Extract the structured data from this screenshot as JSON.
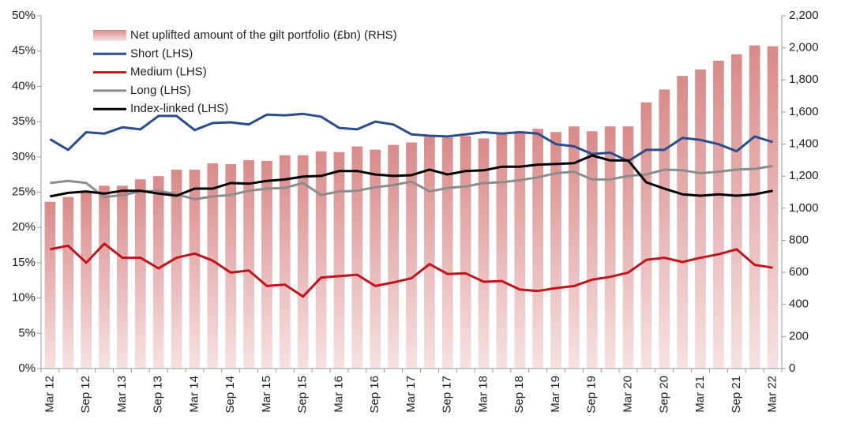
{
  "chart_data": {
    "type": "bar-line",
    "categories": [
      "Mar 12",
      null,
      "Sep 12",
      null,
      "Mar 13",
      null,
      "Sep 13",
      null,
      "Mar 14",
      null,
      "Sep 14",
      null,
      "Mar 15",
      null,
      "Sep 15",
      null,
      "Mar 16",
      null,
      "Sep 16",
      null,
      "Mar 17",
      null,
      "Sep 17",
      null,
      "Mar 18",
      null,
      "Sep 18",
      null,
      "Mar 19",
      null,
      "Sep 19",
      null,
      "Mar 20",
      null,
      "Sep 20",
      null,
      "Mar 21",
      null,
      "Sep 21",
      null,
      "Mar 22"
    ],
    "ylim": [
      0,
      50
    ],
    "yticks": [
      {
        "value": 0,
        "label": "0%"
      },
      {
        "value": 5,
        "label": "5%"
      },
      {
        "value": 10,
        "label": "10%"
      },
      {
        "value": 15,
        "label": "15%"
      },
      {
        "value": 20,
        "label": "20%"
      },
      {
        "value": 25,
        "label": "25%"
      },
      {
        "value": 30,
        "label": "30%"
      },
      {
        "value": 35,
        "label": "35%"
      },
      {
        "value": 40,
        "label": "40%"
      },
      {
        "value": 45,
        "label": "45%"
      },
      {
        "value": 50,
        "label": "50%"
      }
    ],
    "y2lim": [
      0,
      2200
    ],
    "y2ticks": [
      0,
      200,
      400,
      600,
      800,
      {
        "value": 1000,
        "label": "1,000"
      },
      {
        "value": 1200,
        "label": "1,200"
      },
      {
        "value": 1400,
        "label": "1,400"
      },
      {
        "value": 1600,
        "label": "1,600"
      },
      {
        "value": 1800,
        "label": "1,800"
      },
      {
        "value": 2000,
        "label": "2,000"
      },
      {
        "value": 2200,
        "label": "2,200"
      }
    ],
    "series": [
      {
        "name": "Net uplifted amount of the gilt portfolio (£bn) (RHS)",
        "kind": "bar",
        "axis": "y2",
        "color": "#d98a8a",
        "values": [
          1040,
          1070,
          1100,
          1140,
          1140,
          1180,
          1200,
          1240,
          1240,
          1280,
          1275,
          1300,
          1295,
          1330,
          1330,
          1355,
          1350,
          1385,
          1365,
          1395,
          1410,
          1445,
          1440,
          1450,
          1435,
          1465,
          1480,
          1495,
          1475,
          1510,
          1480,
          1510,
          1510,
          1660,
          1740,
          1825,
          1865,
          1920,
          1960,
          2015,
          2010
        ]
      },
      {
        "name": "Short (LHS)",
        "kind": "line",
        "color": "#2b4d8c",
        "values": [
          32.5,
          31,
          33.5,
          33.3,
          34.2,
          33.9,
          35.8,
          35.8,
          33.8,
          34.8,
          34.9,
          34.6,
          36,
          35.9,
          36.1,
          35.7,
          34.1,
          33.9,
          35,
          34.6,
          33.2,
          33,
          32.9,
          33.2,
          33.5,
          33.3,
          33.5,
          33.3,
          31.8,
          31.5,
          30.4,
          30.6,
          29.4,
          31,
          31,
          32.7,
          32.4,
          31.8,
          30.8,
          32.9,
          32.1
        ]
      },
      {
        "name": "Medium (LHS)",
        "kind": "line",
        "color": "#c0141f",
        "values": [
          16.9,
          17.4,
          15,
          17.7,
          15.7,
          15.7,
          14.2,
          15.7,
          16.3,
          15.3,
          13.6,
          13.9,
          11.7,
          11.9,
          10.2,
          12.9,
          13.1,
          13.3,
          11.7,
          12.2,
          12.8,
          14.8,
          13.4,
          13.5,
          12.3,
          12.4,
          11.2,
          11,
          11.4,
          11.7,
          12.6,
          13,
          13.6,
          15.4,
          15.7,
          15.1,
          15.7,
          16.2,
          16.9,
          14.7,
          14.3
        ]
      },
      {
        "name": "Long (LHS)",
        "kind": "line",
        "color": "#8c8c8c",
        "values": [
          26.3,
          26.6,
          26.3,
          24.3,
          24.6,
          25.1,
          25.2,
          24.7,
          24,
          24.4,
          24.6,
          25.2,
          25.5,
          25.6,
          26.3,
          24.6,
          25.1,
          25.2,
          25.7,
          26,
          26.5,
          25.1,
          25.6,
          25.8,
          26.3,
          26.4,
          26.7,
          27.1,
          27.7,
          27.9,
          26.8,
          26.8,
          27.3,
          27.5,
          28.2,
          28.1,
          27.7,
          27.9,
          28.2,
          28.3,
          28.7
        ]
      },
      {
        "name": "Index-linked (LHS)",
        "kind": "line",
        "color": "#000000",
        "values": [
          24.4,
          24.9,
          25.1,
          24.8,
          25.2,
          25.2,
          24.8,
          24.5,
          25.5,
          25.5,
          26.3,
          26.2,
          26.6,
          26.8,
          27.2,
          27.3,
          28,
          28,
          27.5,
          27.3,
          27.4,
          28.2,
          27.5,
          28,
          28.1,
          28.6,
          28.6,
          28.9,
          29,
          29.1,
          30.2,
          29.5,
          29.5,
          26.4,
          25.5,
          24.7,
          24.5,
          24.7,
          24.5,
          24.7,
          25.2
        ]
      }
    ]
  }
}
